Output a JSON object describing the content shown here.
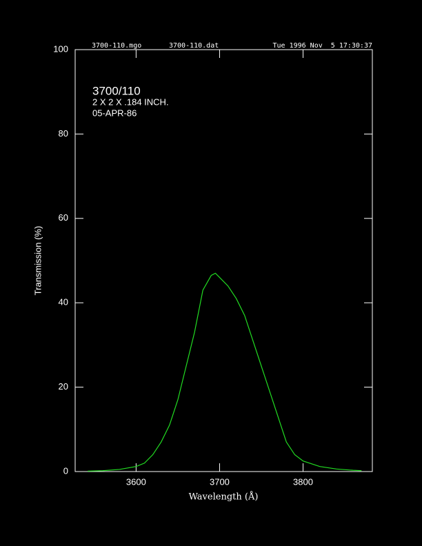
{
  "chart_data": {
    "type": "line",
    "header": [
      "3700-110.mgo",
      "3700-110.dat",
      "Tue 1996 Nov  5 17:30:37"
    ],
    "title": "3700/110",
    "annotations": [
      "2 X 2 X .184 INCH.",
      "05-APR-86"
    ],
    "x_label": "Wavelength (Å)",
    "y_label": "Transmission (%)",
    "x": [
      3542,
      3560,
      3580,
      3600,
      3610,
      3620,
      3630,
      3640,
      3650,
      3660,
      3670,
      3680,
      3690,
      3695,
      3700,
      3710,
      3720,
      3730,
      3740,
      3750,
      3760,
      3770,
      3780,
      3790,
      3800,
      3820,
      3840,
      3860,
      3870
    ],
    "values": [
      0.1,
      0.2,
      0.5,
      1.2,
      2,
      4,
      7,
      11,
      17,
      25,
      33,
      43,
      46.5,
      47,
      46,
      44,
      41,
      37,
      31,
      25,
      19,
      13,
      7,
      4,
      2.5,
      1.2,
      0.6,
      0.3,
      0.2
    ],
    "color": "#22dd22",
    "xlim": [
      3527,
      3883
    ],
    "xticks": [
      3600,
      3700,
      3800
    ],
    "ylim": [
      0,
      100
    ],
    "yticks": [
      0,
      20,
      40,
      60,
      80,
      100
    ]
  }
}
